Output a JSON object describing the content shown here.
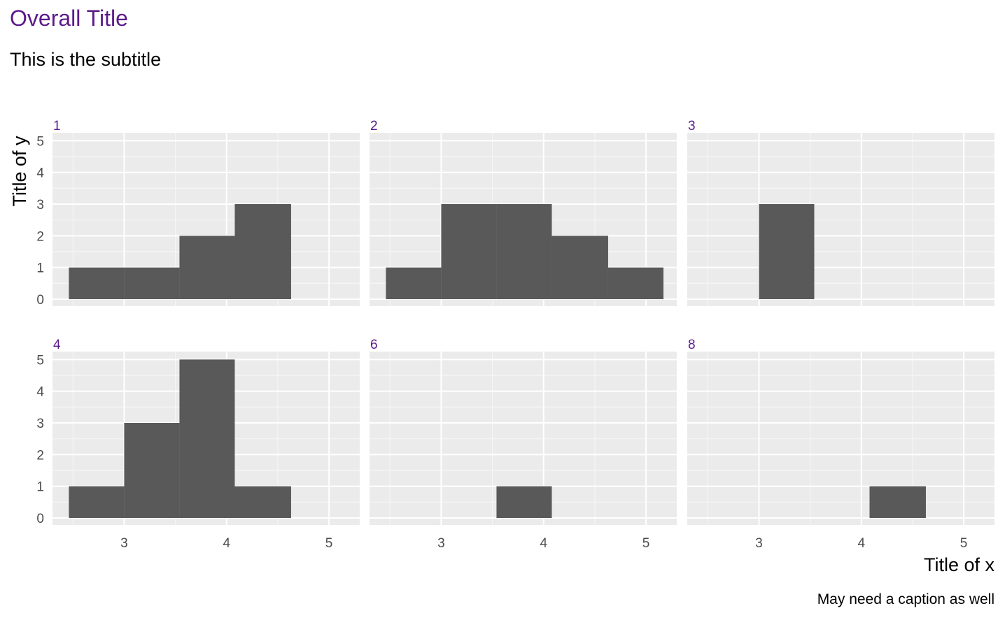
{
  "figure": {
    "title": "Overall Title",
    "subtitle": "This is the subtitle",
    "caption": "May need a caption as well",
    "xlabel": "Title of x",
    "ylabel": "Title of y"
  },
  "colors": {
    "title": "#5c1a8a",
    "strip_text": "#5c1a8a",
    "panel_background": "#ebebeb",
    "grid_major": "#ffffff",
    "grid_minor": "#f5f5f5",
    "bar_fill": "#595959",
    "tick_text": "#4d4d4d",
    "axis_title": "#000000"
  },
  "chart_data": {
    "type": "bar",
    "layout": "facet grid, 2 rows x 3 columns, shared axes",
    "xlim": [
      2.3,
      5.3
    ],
    "ylim": [
      0,
      5
    ],
    "x_ticks": [
      3,
      4,
      5
    ],
    "y_ticks": [
      0,
      1,
      2,
      3,
      4,
      5
    ],
    "grid": true,
    "bin_width": 0.542,
    "panels": [
      {
        "label": "1",
        "bins": [
          {
            "x0": 2.46,
            "x1": 3.0,
            "count": 1
          },
          {
            "x0": 3.0,
            "x1": 3.54,
            "count": 1
          },
          {
            "x0": 3.54,
            "x1": 4.08,
            "count": 2
          },
          {
            "x0": 4.08,
            "x1": 4.63,
            "count": 3
          }
        ]
      },
      {
        "label": "2",
        "bins": [
          {
            "x0": 2.46,
            "x1": 3.0,
            "count": 1
          },
          {
            "x0": 3.0,
            "x1": 3.54,
            "count": 3
          },
          {
            "x0": 3.54,
            "x1": 4.08,
            "count": 3
          },
          {
            "x0": 4.08,
            "x1": 4.63,
            "count": 2
          },
          {
            "x0": 4.63,
            "x1": 5.17,
            "count": 1
          }
        ]
      },
      {
        "label": "3",
        "bins": [
          {
            "x0": 3.0,
            "x1": 3.54,
            "count": 3
          }
        ]
      },
      {
        "label": "4",
        "bins": [
          {
            "x0": 2.46,
            "x1": 3.0,
            "count": 1
          },
          {
            "x0": 3.0,
            "x1": 3.54,
            "count": 3
          },
          {
            "x0": 3.54,
            "x1": 4.08,
            "count": 5
          },
          {
            "x0": 4.08,
            "x1": 4.63,
            "count": 1
          }
        ]
      },
      {
        "label": "6",
        "bins": [
          {
            "x0": 3.54,
            "x1": 4.08,
            "count": 1
          }
        ]
      },
      {
        "label": "8",
        "bins": [
          {
            "x0": 4.08,
            "x1": 4.63,
            "count": 1
          }
        ]
      }
    ]
  }
}
